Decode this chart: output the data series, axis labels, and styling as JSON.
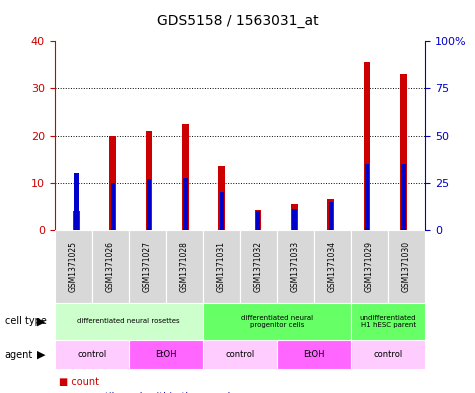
{
  "title": "GDS5158 / 1563031_at",
  "samples": [
    "GSM1371025",
    "GSM1371026",
    "GSM1371027",
    "GSM1371028",
    "GSM1371031",
    "GSM1371032",
    "GSM1371033",
    "GSM1371034",
    "GSM1371029",
    "GSM1371030"
  ],
  "counts": [
    4.0,
    20.0,
    21.0,
    22.5,
    13.5,
    4.2,
    5.5,
    6.5,
    35.5,
    33.0
  ],
  "percentile_values": [
    30.0,
    25.0,
    27.0,
    27.5,
    20.0,
    10.0,
    11.0,
    15.0,
    35.0,
    35.0
  ],
  "ylim_left": [
    0,
    40
  ],
  "ylim_right": [
    0,
    100
  ],
  "yticks_left": [
    0,
    10,
    20,
    30,
    40
  ],
  "yticks_right": [
    0,
    25,
    50,
    75,
    100
  ],
  "bar_color": "#cc0000",
  "percentile_color": "#0000cc",
  "cell_type_groups": [
    {
      "label": "differentiated neural rosettes",
      "start": 0,
      "end": 3,
      "color": "#ccffcc"
    },
    {
      "label": "differentiated neural\nprogenitor cells",
      "start": 4,
      "end": 7,
      "color": "#66ff66"
    },
    {
      "label": "undifferentiated\nH1 hESC parent",
      "start": 8,
      "end": 9,
      "color": "#66ff66"
    }
  ],
  "agent_groups": [
    {
      "label": "control",
      "start": 0,
      "end": 1,
      "color": "#ffccff"
    },
    {
      "label": "EtOH",
      "start": 2,
      "end": 3,
      "color": "#ff66ff"
    },
    {
      "label": "control",
      "start": 4,
      "end": 5,
      "color": "#ffccff"
    },
    {
      "label": "EtOH",
      "start": 6,
      "end": 7,
      "color": "#ff66ff"
    },
    {
      "label": "control",
      "start": 8,
      "end": 9,
      "color": "#ffccff"
    }
  ],
  "xlabel_row_bg": "#d8d8d8",
  "legend_count_color": "#cc0000",
  "legend_percentile_color": "#0000cc",
  "bar_width": 0.18,
  "pct_bar_width": 0.12
}
